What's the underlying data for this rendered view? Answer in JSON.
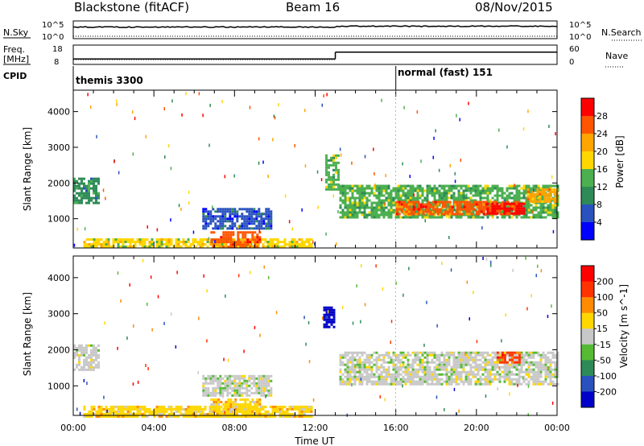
{
  "header": {
    "station": "Blackstone (fitACF)",
    "beam": "Beam 16",
    "date": "08/Nov/2015"
  },
  "top_panels": {
    "nsky_label": "N.Sky",
    "nsearch_label": "N.Search",
    "nsky_ticks": [
      "10^5",
      "10^0"
    ],
    "nsearch_ticks": [
      "10^5",
      "10^0"
    ],
    "freq_label_1": "Freq.",
    "freq_label_2": "[MHz]",
    "freq_ticks": [
      "18",
      "8"
    ],
    "nave_label": "Nave",
    "nave_ticks": [
      "60",
      "0"
    ],
    "cpid_label": "CPID",
    "cpid_segments": [
      {
        "label": "themis 3300",
        "start_hour": 0
      },
      {
        "label": "normal (fast) 151",
        "start_hour": 16
      }
    ],
    "frequency_series": [
      {
        "start_hour": 0,
        "end_hour": 13,
        "level": 0.2
      },
      {
        "start_hour": 13,
        "end_hour": 24,
        "level": 0.55
      }
    ]
  },
  "chart_data": [
    {
      "type": "heatmap",
      "parameter": "Power",
      "ylabel": "Slant Range [km]",
      "ylim": [
        180,
        4600
      ],
      "yticks": [
        "1000",
        "2000",
        "3000",
        "4000"
      ],
      "xlim_hours": [
        0,
        24
      ],
      "colorbar_label": "Power [dB]",
      "colorbar_ticks": [
        "4",
        "8",
        "12",
        "16",
        "20",
        "24",
        "28"
      ],
      "colorbar_colors": [
        "#0000ff",
        "#2a52be",
        "#2e8b57",
        "#4caf50",
        "#ffd700",
        "#ffa500",
        "#ff5500",
        "#ff0000"
      ],
      "regions": [
        {
          "t0": 0.0,
          "t1": 1.2,
          "r0": 1450,
          "r1": 2150,
          "level": 2
        },
        {
          "t0": 6.4,
          "t1": 9.8,
          "r0": 700,
          "r1": 1300,
          "level": 1
        },
        {
          "t0": 0.5,
          "t1": 11.8,
          "r0": 180,
          "r1": 450,
          "level": 4
        },
        {
          "t0": 6.8,
          "t1": 9.3,
          "r0": 180,
          "r1": 650,
          "level": 6
        },
        {
          "t0": 12.5,
          "t1": 13.2,
          "r0": 1800,
          "r1": 2800,
          "level": 3
        },
        {
          "t0": 13.2,
          "t1": 24.0,
          "r0": 1050,
          "r1": 1950,
          "level": 3
        },
        {
          "t0": 16.0,
          "t1": 22.0,
          "r0": 1150,
          "r1": 1500,
          "level": 6
        },
        {
          "t0": 20.5,
          "t1": 22.4,
          "r0": 1150,
          "r1": 1450,
          "level": 7
        },
        {
          "t0": 22.5,
          "t1": 24.0,
          "r0": 1450,
          "r1": 1850,
          "level": 5
        }
      ]
    },
    {
      "type": "heatmap",
      "parameter": "Velocity",
      "ylabel": "Slant Range [km]",
      "ylim": [
        180,
        4600
      ],
      "yticks": [
        "1000",
        "2000",
        "3000",
        "4000"
      ],
      "xlim_hours": [
        0,
        24
      ],
      "xticks": [
        "00:00",
        "04:00",
        "08:00",
        "12:00",
        "16:00",
        "20:00",
        "00:00"
      ],
      "xlabel": "Time UT",
      "colorbar_label": "Velocity [m s^-1]",
      "colorbar_ticks": [
        "200",
        "100",
        "50",
        "15",
        "-15",
        "-50",
        "-100",
        "-200"
      ],
      "colorbar_colors": [
        "#0000c8",
        "#2a52be",
        "#2e8b57",
        "#55bb33",
        "#c8c8c8",
        "#ffd700",
        "#ff8c00",
        "#ff3300",
        "#ff0000"
      ],
      "regions": [
        {
          "t0": 0.0,
          "t1": 1.2,
          "r0": 1450,
          "r1": 2150,
          "level": 4
        },
        {
          "t0": 6.4,
          "t1": 9.8,
          "r0": 700,
          "r1": 1300,
          "level": 4
        },
        {
          "t0": 0.5,
          "t1": 11.8,
          "r0": 180,
          "r1": 450,
          "level": 5
        },
        {
          "t0": 6.8,
          "t1": 9.3,
          "r0": 180,
          "r1": 650,
          "level": 5
        },
        {
          "t0": 12.4,
          "t1": 12.9,
          "r0": 2600,
          "r1": 3200,
          "level": 0
        },
        {
          "t0": 13.2,
          "t1": 24.0,
          "r0": 1050,
          "r1": 1950,
          "level": 4
        },
        {
          "t0": 21.0,
          "t1": 22.1,
          "r0": 1650,
          "r1": 1950,
          "level": 7
        }
      ]
    }
  ]
}
